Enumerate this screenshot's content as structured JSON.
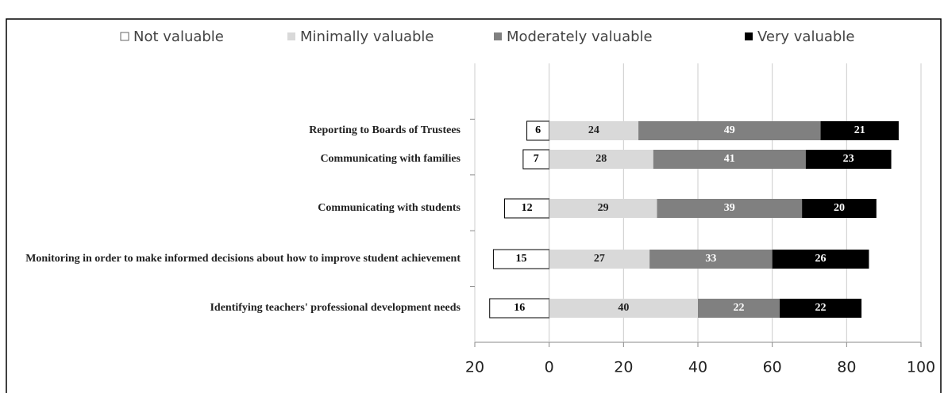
{
  "chart_data": {
    "type": "diverging_stacked_bar",
    "categories": [
      "Reporting to Boards of Trustees",
      "Communicating with families",
      "Communicating with students",
      "Monitoring in order to make informed decisions about how to improve student achievement",
      "Identifying teachers' professional development needs"
    ],
    "series": [
      {
        "name": "Not valuable",
        "color": "#ffffff",
        "values": [
          6,
          7,
          12,
          15,
          16
        ]
      },
      {
        "name": "Minimally valuable",
        "color": "#d9d9d9",
        "values": [
          24,
          28,
          29,
          27,
          40
        ]
      },
      {
        "name": "Moderately valuable",
        "color": "#808080",
        "values": [
          49,
          41,
          39,
          33,
          22
        ]
      },
      {
        "name": "Very valuable",
        "color": "#000000",
        "values": [
          21,
          23,
          20,
          26,
          22
        ]
      }
    ],
    "xlim": [
      -20,
      100
    ],
    "xticks": [
      {
        "value": -20,
        "label": "20"
      },
      0,
      20,
      40,
      60,
      80,
      100
    ],
    "legend": "top"
  }
}
